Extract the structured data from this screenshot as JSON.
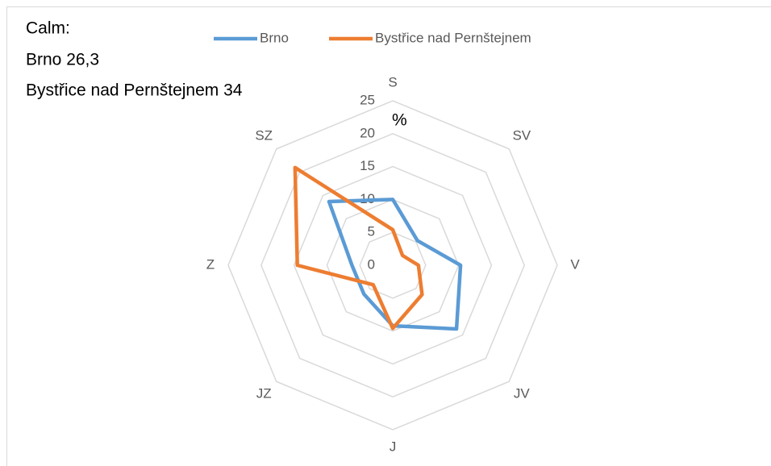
{
  "chart_data": {
    "type": "radar",
    "annotation": [
      "Calm:",
      "Brno 26,3",
      "Bystřice nad Pernštejnem 34"
    ],
    "axis_label": "%",
    "categories": [
      "S",
      "SV",
      "V",
      "JV",
      "J",
      "JZ",
      "Z",
      "SZ"
    ],
    "series": [
      {
        "name": "Brno",
        "color": "#5b9bd5",
        "values": [
          10,
          5.3,
          10.3,
          13.7,
          9.2,
          6.2,
          6.2,
          13.7
        ]
      },
      {
        "name": "Bystřice nad Pernštejnem",
        "color": "#ed7d31",
        "values": [
          5.4,
          2.1,
          3.9,
          6.3,
          9.6,
          4.2,
          14.5,
          21
        ]
      }
    ],
    "ylim": [
      0,
      25
    ],
    "yticks": [
      0,
      5,
      10,
      15,
      20,
      25
    ],
    "grid": true,
    "legend": "top"
  }
}
